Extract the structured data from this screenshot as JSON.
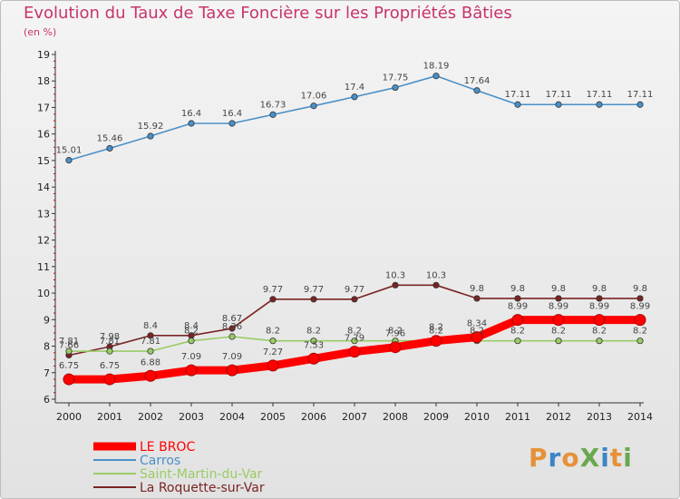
{
  "title": "Evolution du Taux de Taxe Foncière sur les Propriétés Bâties",
  "subtitle": "(en %)",
  "logo": {
    "text": "ProXiti",
    "colors": [
      "#e69138",
      "#3d85c6",
      "#e69138",
      "#6aa84f",
      "#3d85c6",
      "#e69138",
      "#6aa84f"
    ]
  },
  "chart_data": {
    "type": "line",
    "title": "Evolution du Taux de Taxe Foncière sur les Propriétés Bâties",
    "ylabel": "(en %)",
    "xlabel": "",
    "ylim": [
      6,
      19
    ],
    "y_ticks": [
      6,
      7,
      8,
      9,
      10,
      11,
      12,
      13,
      14,
      15,
      16,
      17,
      18,
      19
    ],
    "grid": false,
    "legend_position": "bottom-left",
    "x": [
      "2000",
      "2001",
      "2002",
      "2003",
      "2004",
      "2005",
      "2006",
      "2007",
      "2008",
      "2009",
      "2010",
      "2011",
      "2012",
      "2013",
      "2014"
    ],
    "series": [
      {
        "name": "LE BROC",
        "color": "#ff0000",
        "style": "thick",
        "values": [
          6.75,
          6.75,
          6.88,
          7.09,
          7.09,
          7.27,
          7.53,
          7.79,
          7.96,
          8.2,
          8.34,
          8.99,
          8.99,
          8.99,
          8.99
        ],
        "labels": [
          "6.75",
          "6.75",
          "6.88",
          "7.09",
          "7.09",
          "7.27",
          "7.53",
          "7.79",
          "7.96",
          "8.2",
          "8.34",
          "8.99",
          "8.99",
          "8.99",
          "8.99"
        ]
      },
      {
        "name": "Carros",
        "color": "#4a90c8",
        "values": [
          15.01,
          15.46,
          15.92,
          16.4,
          16.4,
          16.73,
          17.06,
          17.4,
          17.75,
          18.19,
          17.64,
          17.11,
          17.11,
          17.11,
          17.11
        ],
        "labels": [
          "15.01",
          "15.46",
          "15.92",
          "16.4",
          "16.4",
          "16.73",
          "17.06",
          "17.4",
          "17.75",
          "18.19",
          "17.64",
          "17.11",
          "17.11",
          "17.11",
          "17.11"
        ]
      },
      {
        "name": "Saint-Martin-du-Var",
        "color": "#99cc66",
        "values": [
          7.81,
          7.81,
          7.81,
          8.2,
          8.36,
          8.2,
          8.2,
          8.2,
          8.2,
          8.2,
          8.2,
          8.2,
          8.2,
          8.2,
          8.2
        ],
        "labels": [
          "7.81",
          "7.81",
          "7.81",
          "8.2",
          "8.36",
          "8.2",
          "8.2",
          "8.2",
          "8.2",
          "8.2",
          "8.2",
          "8.2",
          "8.2",
          "8.2",
          "8.2"
        ]
      },
      {
        "name": "La Roquette-sur-Var",
        "color": "#7a2424",
        "values": [
          7.66,
          7.98,
          8.4,
          8.4,
          8.67,
          9.77,
          9.77,
          9.77,
          10.3,
          10.3,
          9.8,
          9.8,
          9.8,
          9.8,
          9.8
        ],
        "labels": [
          "7.66",
          "7.98",
          "8.4",
          "8.4",
          "8.67",
          "9.77",
          "9.77",
          "9.77",
          "10.3",
          "10.3",
          "9.8",
          "9.8",
          "9.8",
          "9.8",
          "9.8"
        ]
      }
    ]
  }
}
